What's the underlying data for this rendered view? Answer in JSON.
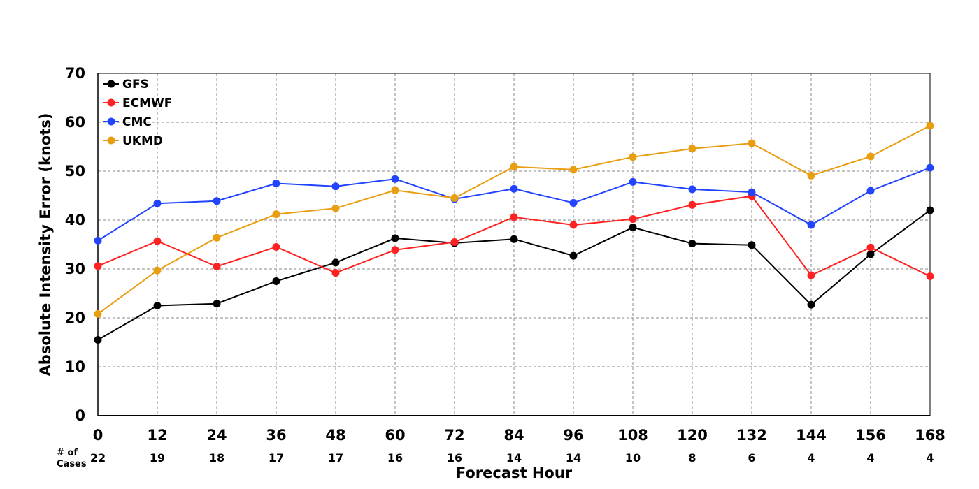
{
  "chart_data": {
    "type": "line",
    "xlabel": "Forecast Hour",
    "ylabel": "Absolute Intensity Error (knots)",
    "x": [
      0,
      12,
      24,
      36,
      48,
      60,
      72,
      84,
      96,
      108,
      120,
      132,
      144,
      156,
      168
    ],
    "xlim": [
      0,
      168
    ],
    "ylim": [
      0,
      70
    ],
    "yticks": [
      0,
      10,
      20,
      30,
      40,
      50,
      60,
      70
    ],
    "grid": true,
    "legend_position": "top-left",
    "cases_label_line1": "# of",
    "cases_label_line2": "Cases",
    "cases": [
      22,
      19,
      18,
      17,
      17,
      16,
      16,
      14,
      14,
      10,
      8,
      6,
      4,
      4,
      4
    ],
    "series": [
      {
        "name": "GFS",
        "color": "#000000",
        "values": [
          15.5,
          22.5,
          22.9,
          27.5,
          31.3,
          36.3,
          35.3,
          36.1,
          32.7,
          38.5,
          35.2,
          34.9,
          22.7,
          33.0,
          42.0
        ]
      },
      {
        "name": "ECMWF",
        "color": "#ff2222",
        "values": [
          30.6,
          35.7,
          30.5,
          34.5,
          29.2,
          33.9,
          35.5,
          40.6,
          39.0,
          40.2,
          43.1,
          44.9,
          28.7,
          34.4,
          28.5
        ]
      },
      {
        "name": "CMC",
        "color": "#2244ff",
        "values": [
          35.8,
          43.4,
          43.9,
          47.5,
          46.9,
          48.4,
          44.3,
          46.4,
          43.5,
          47.8,
          46.3,
          45.7,
          39.0,
          46.0,
          50.7
        ]
      },
      {
        "name": "UKMD",
        "color": "#e89e10",
        "values": [
          20.8,
          29.7,
          36.4,
          41.2,
          42.4,
          46.1,
          44.5,
          50.9,
          50.3,
          52.9,
          54.6,
          55.7,
          49.1,
          53.0,
          59.3
        ]
      }
    ]
  }
}
